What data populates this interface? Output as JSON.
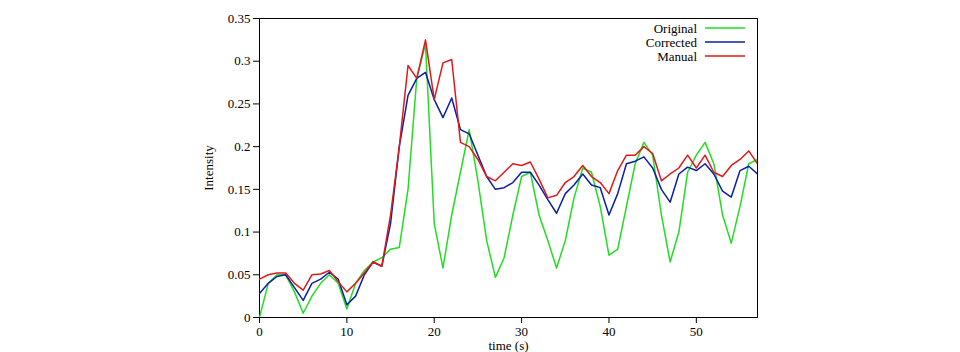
{
  "chart_data": {
    "type": "line",
    "x_label": "time (s)",
    "y_label": "Intensity",
    "x": [
      0,
      1,
      2,
      3,
      4,
      5,
      6,
      7,
      8,
      9,
      10,
      11,
      12,
      13,
      14,
      15,
      16,
      17,
      18,
      19,
      20,
      21,
      22,
      23,
      24,
      25,
      26,
      27,
      28,
      29,
      30,
      31,
      32,
      33,
      34,
      35,
      36,
      37,
      38,
      39,
      40,
      41,
      42,
      43,
      44,
      45,
      46,
      47,
      48,
      49,
      50,
      51,
      52,
      53,
      54,
      55,
      56,
      57
    ],
    "series": [
      {
        "name": "Original",
        "color": "#22dd22",
        "values": [
          0.0,
          0.04,
          0.05,
          0.05,
          0.03,
          0.005,
          0.025,
          0.04,
          0.05,
          0.04,
          0.01,
          0.04,
          0.055,
          0.065,
          0.07,
          0.08,
          0.082,
          0.15,
          0.28,
          0.32,
          0.11,
          0.058,
          0.12,
          0.17,
          0.22,
          0.16,
          0.09,
          0.047,
          0.07,
          0.12,
          0.165,
          0.17,
          0.12,
          0.09,
          0.058,
          0.09,
          0.14,
          0.175,
          0.17,
          0.13,
          0.073,
          0.08,
          0.13,
          0.18,
          0.205,
          0.19,
          0.12,
          0.065,
          0.1,
          0.17,
          0.19,
          0.205,
          0.18,
          0.12,
          0.087,
          0.13,
          0.18,
          0.185
        ]
      },
      {
        "name": "Corrected",
        "color": "#0a1fa8",
        "values": [
          0.028,
          0.04,
          0.048,
          0.05,
          0.035,
          0.02,
          0.04,
          0.045,
          0.053,
          0.045,
          0.015,
          0.025,
          0.05,
          0.065,
          0.06,
          0.11,
          0.2,
          0.26,
          0.28,
          0.287,
          0.255,
          0.234,
          0.257,
          0.22,
          0.215,
          0.19,
          0.165,
          0.15,
          0.152,
          0.158,
          0.17,
          0.17,
          0.155,
          0.138,
          0.122,
          0.145,
          0.155,
          0.168,
          0.155,
          0.152,
          0.12,
          0.145,
          0.18,
          0.183,
          0.188,
          0.175,
          0.15,
          0.135,
          0.168,
          0.176,
          0.172,
          0.18,
          0.168,
          0.148,
          0.141,
          0.172,
          0.177,
          0.168
        ]
      },
      {
        "name": "Manual",
        "color": "#dd1a1a",
        "values": [
          0.045,
          0.05,
          0.052,
          0.052,
          0.04,
          0.032,
          0.05,
          0.051,
          0.055,
          0.042,
          0.03,
          0.04,
          0.052,
          0.065,
          0.06,
          0.12,
          0.2,
          0.295,
          0.28,
          0.325,
          0.255,
          0.298,
          0.302,
          0.205,
          0.2,
          0.185,
          0.165,
          0.16,
          0.17,
          0.18,
          0.178,
          0.182,
          0.162,
          0.14,
          0.143,
          0.158,
          0.165,
          0.178,
          0.165,
          0.158,
          0.145,
          0.172,
          0.19,
          0.19,
          0.2,
          0.192,
          0.16,
          0.168,
          0.175,
          0.19,
          0.175,
          0.19,
          0.17,
          0.165,
          0.178,
          0.185,
          0.195,
          0.18
        ]
      }
    ],
    "xlim": [
      0,
      57
    ],
    "xticks": [
      0,
      10,
      20,
      30,
      40,
      50
    ],
    "ylim": [
      0,
      0.35
    ],
    "yticks": [
      0,
      0.05,
      0.1,
      0.15,
      0.2,
      0.25,
      0.3,
      0.35
    ],
    "legend": "top-right",
    "grid": false
  }
}
